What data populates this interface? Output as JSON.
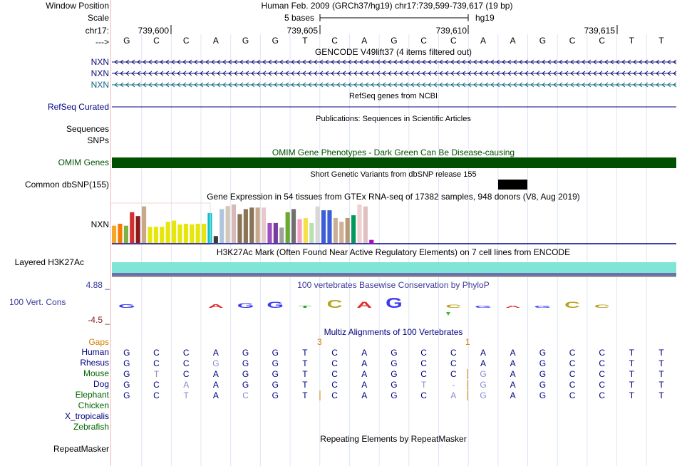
{
  "labels": {
    "window_position": "Window Position",
    "scale": "Scale",
    "chrom": "chr17:",
    "strand": "--->"
  },
  "header": {
    "assembly_position": "Human Feb. 2009 (GRCh37/hg19)   chr17:739,599-739,617 (19 bp)",
    "scale_text": "5 bases",
    "db": "hg19",
    "ticks": [
      "739,600",
      "739,605",
      "739,610",
      "739,615"
    ]
  },
  "sequence": [
    "G",
    "C",
    "C",
    "A",
    "G",
    "G",
    "T",
    "C",
    "A",
    "G",
    "C",
    "C",
    "A",
    "A",
    "G",
    "C",
    "C",
    "T",
    "T"
  ],
  "tracks": {
    "gencode": {
      "title": "GENCODE V49lift37 (4 items filtered out)",
      "genes": [
        "NXN",
        "NXN",
        "NXN"
      ]
    },
    "refseq": {
      "title": "RefSeq genes from NCBI",
      "label": "RefSeq Curated"
    },
    "publications": {
      "title": "Publications: Sequences in Scientific Articles",
      "labels": [
        "Sequences",
        "SNPs"
      ]
    },
    "omim": {
      "title": "OMIM Gene Phenotypes - Dark Green Can Be Disease-causing",
      "label": "OMIM Genes"
    },
    "dbsnp": {
      "title": "Short Genetic Variants from dbSNP release 155",
      "label": "Common dbSNP(155)"
    },
    "gtex": {
      "title": "Gene Expression in 54 tissues from GTEx RNA-seq of 17382 samples, 948 donors (V8, Aug 2019)",
      "label": "NXN",
      "bars": [
        {
          "v": 0.45,
          "c": "#f5a623"
        },
        {
          "v": 0.5,
          "c": "#f57c00"
        },
        {
          "v": 0.45,
          "c": "#7cb342"
        },
        {
          "v": 0.8,
          "c": "#d32f2f"
        },
        {
          "v": 0.7,
          "c": "#8b1a1a"
        },
        {
          "v": 0.95,
          "c": "#c9a887"
        },
        {
          "v": 0.42,
          "c": "#e6e60a"
        },
        {
          "v": 0.42,
          "c": "#e6e60a"
        },
        {
          "v": 0.42,
          "c": "#e6e60a"
        },
        {
          "v": 0.55,
          "c": "#e6e60a"
        },
        {
          "v": 0.58,
          "c": "#e6e60a"
        },
        {
          "v": 0.48,
          "c": "#e6e60a"
        },
        {
          "v": 0.5,
          "c": "#e6e60a"
        },
        {
          "v": 0.48,
          "c": "#e6e60a"
        },
        {
          "v": 0.5,
          "c": "#e6e60a"
        },
        {
          "v": 0.5,
          "c": "#e6e60a"
        },
        {
          "v": 0.78,
          "c": "#00c5cd"
        },
        {
          "v": 0.18,
          "c": "#3a3a3a"
        },
        {
          "v": 0.88,
          "c": "#b0c4de"
        },
        {
          "v": 0.96,
          "c": "#d3c8b8"
        },
        {
          "v": 1.0,
          "c": "#d8b8b8"
        },
        {
          "v": 0.75,
          "c": "#8b7355"
        },
        {
          "v": 0.88,
          "c": "#8b7355"
        },
        {
          "v": 0.92,
          "c": "#8b7355"
        },
        {
          "v": 0.92,
          "c": "#c7a98e"
        },
        {
          "v": 0.92,
          "c": "#e8c8c8"
        },
        {
          "v": 0.52,
          "c": "#9c4fc0"
        },
        {
          "v": 0.52,
          "c": "#7a3aa0"
        },
        {
          "v": 0.4,
          "c": "#a0a0a0"
        },
        {
          "v": 0.8,
          "c": "#6aaa30"
        },
        {
          "v": 0.88,
          "c": "#6f6f6f"
        },
        {
          "v": 0.62,
          "c": "#f5a0c0"
        },
        {
          "v": 0.65,
          "c": "#f5e04a"
        },
        {
          "v": 0.52,
          "c": "#b8e0b0"
        },
        {
          "v": 0.95,
          "c": "#d8d8d8"
        },
        {
          "v": 0.85,
          "c": "#3b5ed8"
        },
        {
          "v": 0.85,
          "c": "#3b5ed8"
        },
        {
          "v": 0.65,
          "c": "#c8b098"
        },
        {
          "v": 0.55,
          "c": "#d0b090"
        },
        {
          "v": 0.65,
          "c": "#b89878"
        },
        {
          "v": 0.72,
          "c": "#009a5a"
        },
        {
          "v": 1.0,
          "c": "#f0d0d0"
        },
        {
          "v": 0.95,
          "c": "#e0c0c0"
        },
        {
          "v": 0.08,
          "c": "#c000c0"
        }
      ]
    },
    "h3k27ac": {
      "title": "H3K27Ac Mark (Often Found Near Active Regulatory Elements) on 7 cell lines from ENCODE",
      "label": "Layered H3K27Ac"
    },
    "phylop": {
      "title": "100 vertebrates Basewise Conservation by PhyloP",
      "label": "100 Vert. Cons",
      "max": "4.88 _",
      "min": "-4.5 _"
    },
    "multiz": {
      "title": "Multiz Alignments of 100 Vertebrates",
      "gaps_label": "Gaps",
      "gap_counts": [
        "3",
        "1"
      ],
      "species": [
        {
          "name": "Human",
          "color": "#000080",
          "bases": [
            "G",
            "C",
            "C",
            "A",
            "G",
            "G",
            "T",
            "C",
            "A",
            "G",
            "C",
            "C",
            "A",
            "A",
            "G",
            "C",
            "C",
            "T",
            "T"
          ]
        },
        {
          "name": "Rhesus",
          "color": "#000080",
          "bases": [
            "G",
            "C",
            "C",
            "G",
            "G",
            "G",
            "T",
            "C",
            "A",
            "G",
            "C",
            "C",
            "A",
            "A",
            "G",
            "C",
            "C",
            "T",
            "T"
          ]
        },
        {
          "name": "Mouse",
          "color": "#006400",
          "bases": [
            "G",
            "T",
            "C",
            "A",
            "G",
            "G",
            "T",
            "C",
            "A",
            "G",
            "C",
            "C",
            "G",
            "A",
            "G",
            "C",
            "C",
            "T",
            "T"
          ]
        },
        {
          "name": "Dog",
          "color": "#000080",
          "bases": [
            "G",
            "C",
            "A",
            "A",
            "G",
            "G",
            "T",
            "C",
            "A",
            "G",
            "T",
            "-",
            "G",
            "A",
            "G",
            "C",
            "C",
            "T",
            "T"
          ]
        },
        {
          "name": "Elephant",
          "color": "#006400",
          "bases": [
            "G",
            "C",
            "T",
            "A",
            "C",
            "G",
            "T",
            "C",
            "A",
            "G",
            "C",
            "A",
            "G",
            "A",
            "G",
            "C",
            "C",
            "T",
            "T"
          ]
        },
        {
          "name": "Chicken",
          "color": "#006400",
          "bases": []
        },
        {
          "name": "X_tropicalis",
          "color": "#000080",
          "bases": []
        },
        {
          "name": "Zebrafish",
          "color": "#006400",
          "bases": []
        }
      ]
    },
    "repeatmasker": {
      "title": "Repeating Elements by RepeatMasker",
      "label": "RepeatMasker"
    }
  },
  "colors": {
    "label_blue": "#000080",
    "omim_green": "#005000",
    "phylop_blue": "#3a3a9c",
    "gencode_navy": "#0c0c78",
    "gencode_teal": "#0c6480",
    "gaps_orange": "#d08000"
  }
}
